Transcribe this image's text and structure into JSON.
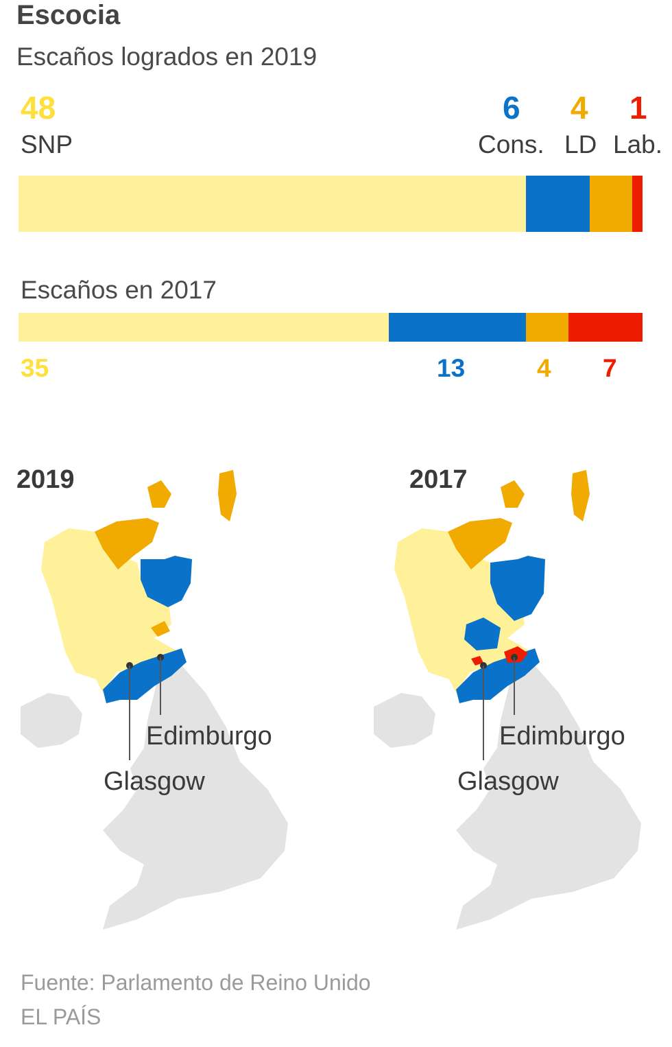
{
  "title": "Escocia",
  "subtitle": "Escaños logrados en 2019",
  "subtitle_2017": "Escaños en 2017",
  "colors": {
    "SNP": "#FFF09A",
    "SNP_text": "#FFE03A",
    "Cons": "#0A72C8",
    "LD": "#F0AA00",
    "Lab": "#EE1C00",
    "land": "#e3e3e3"
  },
  "chart_data": [
    {
      "type": "bar",
      "title": "Escaños logrados en 2019",
      "orientation": "horizontal-stacked",
      "categories": [
        "SNP",
        "Cons.",
        "LD",
        "Lab."
      ],
      "values": [
        48,
        6,
        4,
        1
      ],
      "total": 59
    },
    {
      "type": "bar",
      "title": "Escaños en 2017",
      "orientation": "horizontal-stacked",
      "categories": [
        "SNP",
        "Cons.",
        "LD",
        "Lab."
      ],
      "values": [
        35,
        13,
        4,
        7
      ],
      "total": 59
    }
  ],
  "parties_2019": [
    {
      "label": "SNP",
      "value": "48"
    },
    {
      "label": "Cons.",
      "value": "6"
    },
    {
      "label": "LD",
      "value": "4"
    },
    {
      "label": "Lab.",
      "value": "1"
    }
  ],
  "values_2017": [
    "35",
    "13",
    "4",
    "7"
  ],
  "maps": [
    {
      "year": "2019",
      "city1": "Edimburgo",
      "city2": "Glasgow"
    },
    {
      "year": "2017",
      "city1": "Edimburgo",
      "city2": "Glasgow"
    }
  ],
  "source": "Fuente: Parlamento de Reino Unido",
  "brand": "EL PAÍS"
}
